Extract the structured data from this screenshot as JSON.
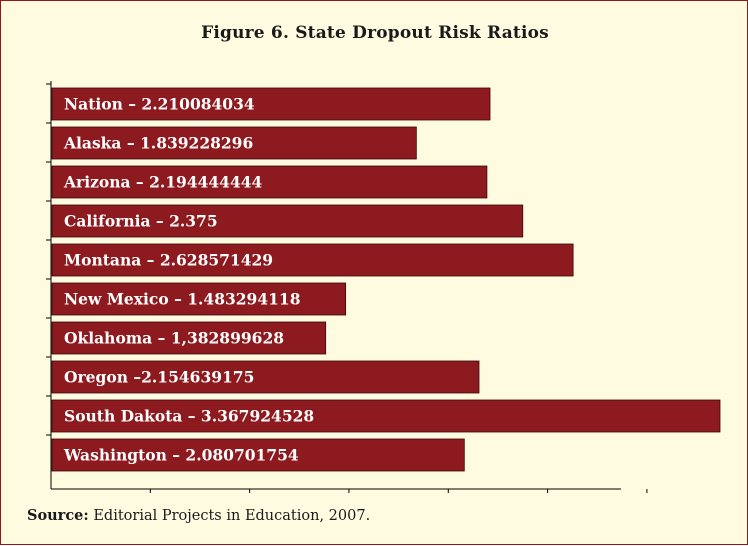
{
  "title": "Figure 6.  State Dropout Risk Ratios",
  "source": {
    "label": "Source:",
    "text": "Editorial Projects in Education, 2007."
  },
  "colors": {
    "bar": "#8c1a1f",
    "background": "#fefbe0",
    "border": "#8c1a1f",
    "axis": "#000000"
  },
  "chart_data": {
    "type": "bar",
    "orientation": "horizontal",
    "title": "Figure 6.  State Dropout Risk Ratios",
    "categories": [
      "Nation",
      "Alaska",
      "Arizona",
      "California",
      "Montana",
      "New Mexico",
      "Oklahoma",
      "Oregon",
      "South Dakota",
      "Washington"
    ],
    "values": [
      2.210084034,
      1.839228296,
      2.194444444,
      2.375,
      2.628571429,
      1.483294118,
      1.382899628,
      2.154639175,
      3.367924528,
      2.080701754
    ],
    "labels": [
      "Nation – 2.210084034",
      "Alaska – 1.839228296",
      "Arizona – 2.194444444",
      "California – 2.375",
      "Montana – 2.628571429",
      "New Mexico – 1.483294118",
      "Oklahoma – 1,382899628",
      "Oregon –2.154639175",
      "South Dakota – 3.367924528",
      "Washington – 2.080701754"
    ],
    "xlim": [
      0,
      3.4
    ],
    "grid": false,
    "legend": "none"
  }
}
